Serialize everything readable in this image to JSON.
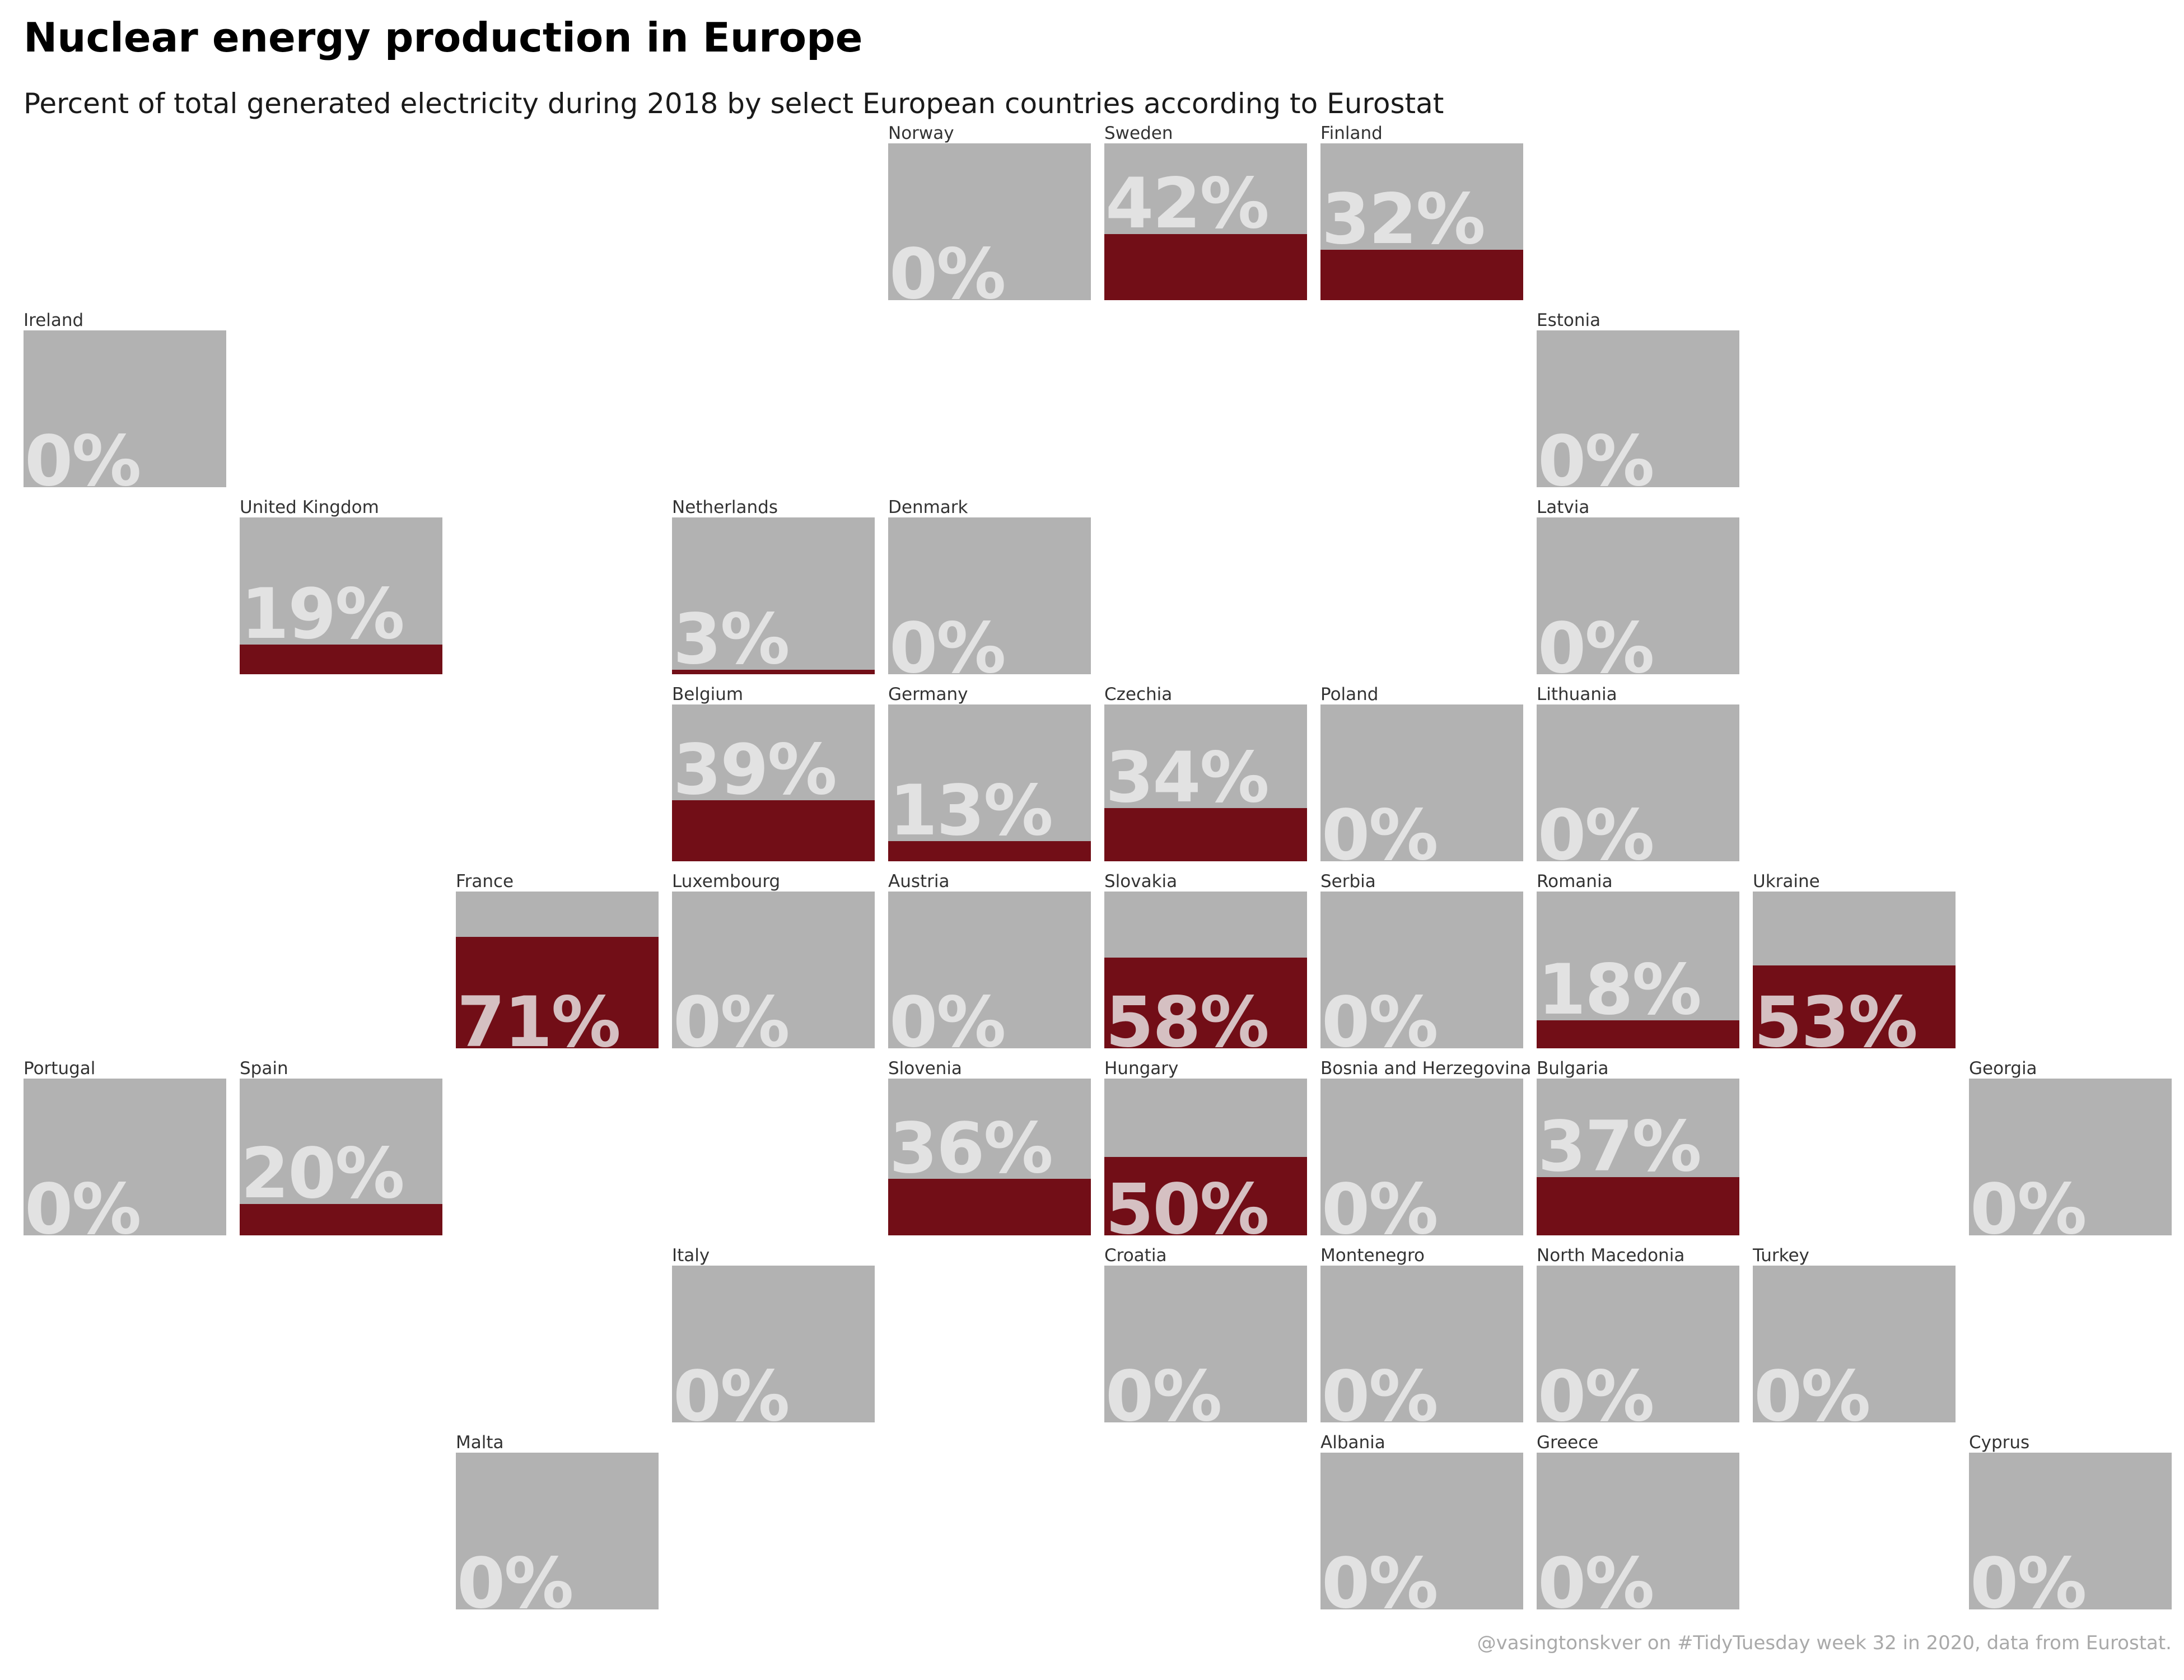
{
  "title": "Nuclear energy production in Europe",
  "subtitle": "Percent of total generated electricity during 2018 by select European countries according to Eurostat",
  "caption": "@vasingtonskver on #TidyTuesday week 32 in 2020, data from Eurostat.",
  "colors": {
    "tile_background": "#b2b2b2",
    "nuclear_bar": "#720e17",
    "value_text": "#eeeeee",
    "caption_text": "#a9a9a9"
  },
  "chart_data": {
    "type": "bar",
    "layout": "geo tile grid",
    "value_unit": "percent",
    "ylim": [
      0,
      100
    ],
    "countries": [
      {
        "name": "Norway",
        "label": "0%",
        "value": 0,
        "row": 0,
        "col": 4
      },
      {
        "name": "Sweden",
        "label": "42%",
        "value": 42,
        "row": 0,
        "col": 5
      },
      {
        "name": "Finland",
        "label": "32%",
        "value": 32,
        "row": 0,
        "col": 6
      },
      {
        "name": "Ireland",
        "label": "0%",
        "value": 0,
        "row": 1,
        "col": 0
      },
      {
        "name": "Estonia",
        "label": "0%",
        "value": 0,
        "row": 1,
        "col": 7
      },
      {
        "name": "United Kingdom",
        "label": "19%",
        "value": 19,
        "row": 2,
        "col": 1
      },
      {
        "name": "Netherlands",
        "label": "3%",
        "value": 3,
        "row": 2,
        "col": 3
      },
      {
        "name": "Denmark",
        "label": "0%",
        "value": 0,
        "row": 2,
        "col": 4
      },
      {
        "name": "Latvia",
        "label": "0%",
        "value": 0,
        "row": 2,
        "col": 7
      },
      {
        "name": "Belgium",
        "label": "39%",
        "value": 39,
        "row": 3,
        "col": 3
      },
      {
        "name": "Germany",
        "label": "13%",
        "value": 13,
        "row": 3,
        "col": 4
      },
      {
        "name": "Czechia",
        "label": "34%",
        "value": 34,
        "row": 3,
        "col": 5
      },
      {
        "name": "Poland",
        "label": "0%",
        "value": 0,
        "row": 3,
        "col": 6
      },
      {
        "name": "Lithuania",
        "label": "0%",
        "value": 0,
        "row": 3,
        "col": 7
      },
      {
        "name": "France",
        "label": "71%",
        "value": 71,
        "row": 4,
        "col": 2
      },
      {
        "name": "Luxembourg",
        "label": "0%",
        "value": 0,
        "row": 4,
        "col": 3
      },
      {
        "name": "Austria",
        "label": "0%",
        "value": 0,
        "row": 4,
        "col": 4
      },
      {
        "name": "Slovakia",
        "label": "58%",
        "value": 58,
        "row": 4,
        "col": 5
      },
      {
        "name": "Serbia",
        "label": "0%",
        "value": 0,
        "row": 4,
        "col": 6
      },
      {
        "name": "Romania",
        "label": "18%",
        "value": 18,
        "row": 4,
        "col": 7
      },
      {
        "name": "Ukraine",
        "label": "53%",
        "value": 53,
        "row": 4,
        "col": 8
      },
      {
        "name": "Portugal",
        "label": "0%",
        "value": 0,
        "row": 5,
        "col": 0
      },
      {
        "name": "Spain",
        "label": "20%",
        "value": 20,
        "row": 5,
        "col": 1
      },
      {
        "name": "Slovenia",
        "label": "36%",
        "value": 36,
        "row": 5,
        "col": 4
      },
      {
        "name": "Hungary",
        "label": "50%",
        "value": 50,
        "row": 5,
        "col": 5
      },
      {
        "name": "Bosnia and Herzegovina",
        "label": "0%",
        "value": 0,
        "row": 5,
        "col": 6
      },
      {
        "name": "Bulgaria",
        "label": "37%",
        "value": 37,
        "row": 5,
        "col": 7
      },
      {
        "name": "Georgia",
        "label": "0%",
        "value": 0,
        "row": 5,
        "col": 9
      },
      {
        "name": "Italy",
        "label": "0%",
        "value": 0,
        "row": 6,
        "col": 3
      },
      {
        "name": "Croatia",
        "label": "0%",
        "value": 0,
        "row": 6,
        "col": 5
      },
      {
        "name": "Montenegro",
        "label": "0%",
        "value": 0,
        "row": 6,
        "col": 6
      },
      {
        "name": "North Macedonia",
        "label": "0%",
        "value": 0,
        "row": 6,
        "col": 7
      },
      {
        "name": "Turkey",
        "label": "0%",
        "value": 0,
        "row": 6,
        "col": 8
      },
      {
        "name": "Malta",
        "label": "0%",
        "value": 0,
        "row": 7,
        "col": 2
      },
      {
        "name": "Albania",
        "label": "0%",
        "value": 0,
        "row": 7,
        "col": 6
      },
      {
        "name": "Greece",
        "label": "0%",
        "value": 0,
        "row": 7,
        "col": 7
      },
      {
        "name": "Cyprus",
        "label": "0%",
        "value": 0,
        "row": 7,
        "col": 9
      }
    ]
  }
}
